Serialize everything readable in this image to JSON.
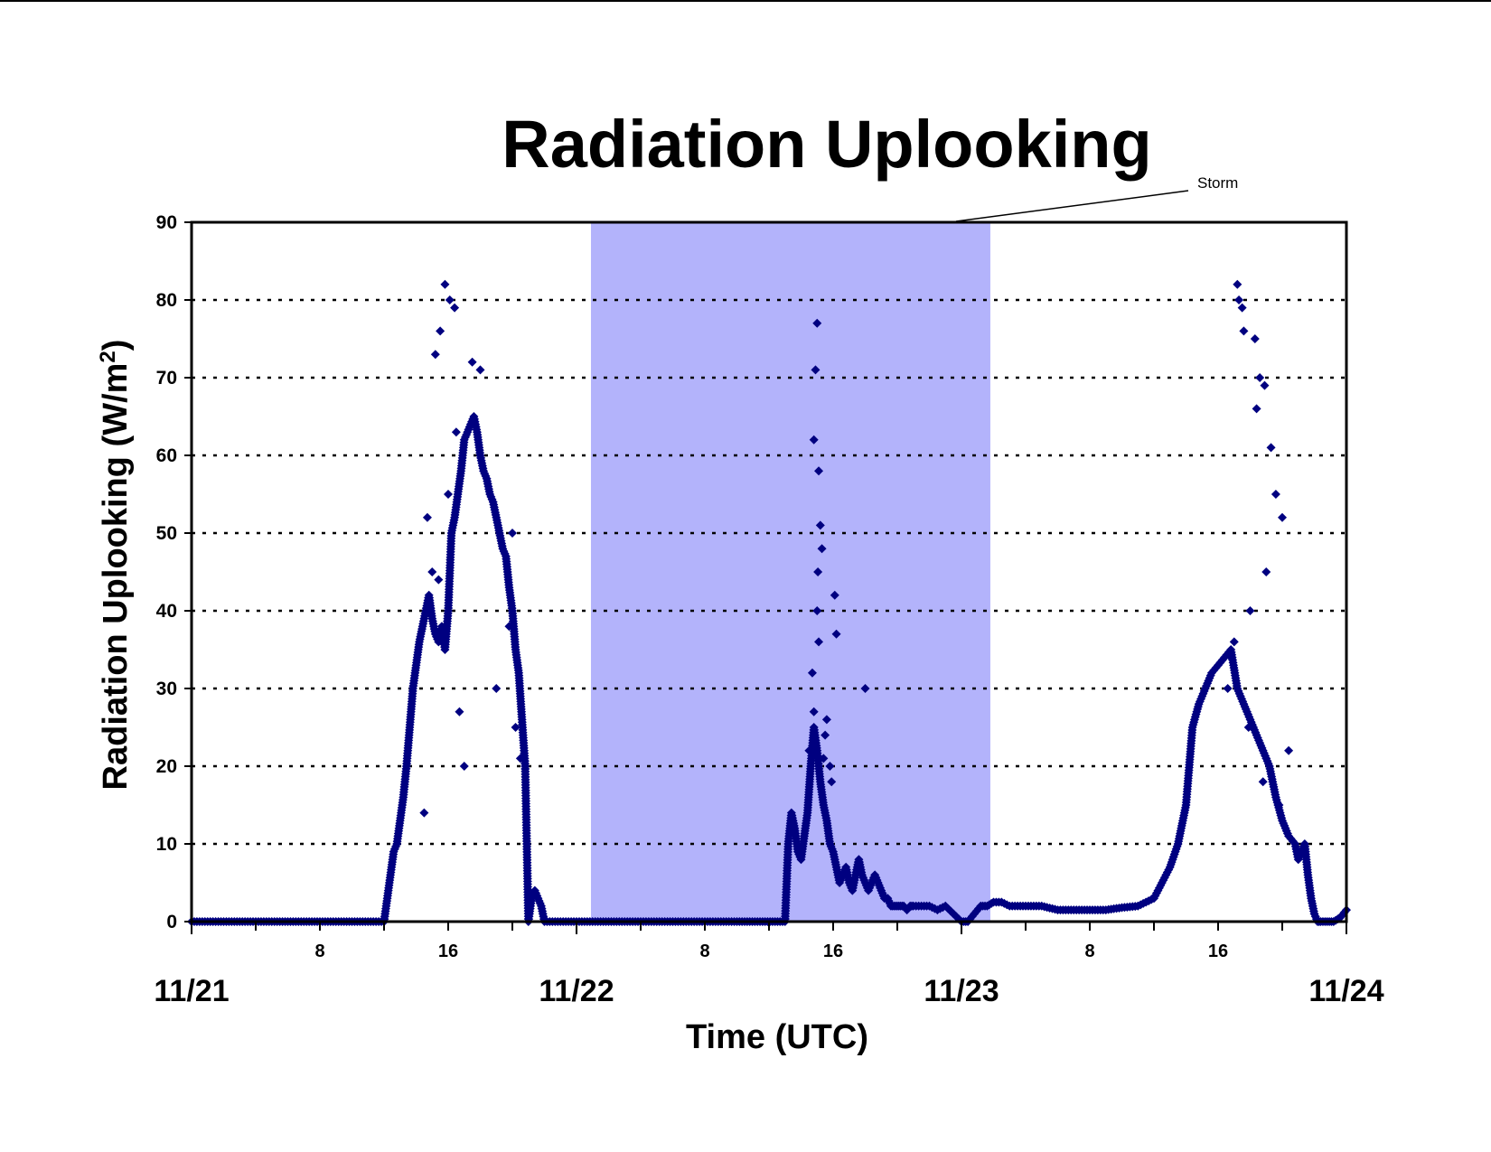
{
  "chart_data": {
    "type": "scatter",
    "title": "Radiation Uplooking",
    "xlabel": "Time (UTC)",
    "ylabel": {
      "text": "Radiation Uplooking (W/m",
      "superscript": "2",
      "close": ")"
    },
    "ylim": [
      0,
      90
    ],
    "yticks": [
      "0",
      "10",
      "20",
      "30",
      "40",
      "50",
      "60",
      "70",
      "80",
      "90"
    ],
    "xlim_hours": [
      0,
      72
    ],
    "x_hour_ticks": [
      {
        "hour": 8,
        "label": "8"
      },
      {
        "hour": 16,
        "label": "16"
      },
      {
        "hour": 32,
        "label": "8"
      },
      {
        "hour": 40,
        "label": "16"
      },
      {
        "hour": 56,
        "label": "8"
      },
      {
        "hour": 64,
        "label": "16"
      }
    ],
    "x_date_ticks": [
      {
        "hour": 0,
        "label": "11/21"
      },
      {
        "hour": 24,
        "label": "11/22"
      },
      {
        "hour": 48,
        "label": "11/23"
      },
      {
        "hour": 72,
        "label": "11/24"
      }
    ],
    "grid": "horizontal-dotted",
    "marker": "diamond",
    "marker_color": "#000080",
    "shaded_region": {
      "label": "Storm",
      "x_start": 24.9,
      "x_end": 49.8,
      "color": "#b3b3fb"
    },
    "series": [
      {
        "x": [
          0,
          2,
          4,
          6,
          8,
          10,
          12,
          12.2,
          12.4,
          12.6,
          12.8,
          13,
          13.2,
          13.4,
          13.6,
          13.8,
          14,
          14.2,
          14.4,
          14.6,
          14.8,
          15,
          15.2,
          15.4,
          15.6,
          15.8,
          16,
          16.2,
          16.4,
          16.6,
          16.8,
          17,
          17.2,
          17.4,
          17.6,
          17.8,
          18,
          18.2,
          18.4,
          18.6,
          18.8,
          19,
          19.2,
          19.4,
          19.6,
          19.8,
          20,
          20.2,
          20.4,
          20.6,
          20.8,
          21,
          21.2,
          21.4,
          21.6,
          21.8,
          22,
          23,
          24,
          26,
          28,
          30,
          32,
          34,
          35.6,
          37,
          37.2,
          37.4,
          37.6,
          37.8,
          38,
          38.2,
          38.4,
          38.6,
          38.8,
          39,
          39.2,
          39.4,
          39.6,
          39.8,
          40,
          40.2,
          40.4,
          40.6,
          40.8,
          41,
          41.2,
          41.4,
          41.6,
          41.8,
          42,
          42.2,
          42.4,
          42.6,
          42.8,
          43,
          43.2,
          43.4,
          43.6,
          43.8,
          44,
          44.2,
          44.4,
          44.6,
          44.8,
          45,
          45.5,
          46,
          46.5,
          47,
          47.5,
          48,
          48.4,
          48.8,
          49.2,
          49.6,
          50,
          50.5,
          51,
          52,
          53,
          54,
          55,
          56,
          57,
          58,
          59,
          60,
          60.5,
          61,
          61.5,
          62,
          62.4,
          62.8,
          63.2,
          63.6,
          64,
          64.4,
          64.8,
          65.2,
          65.6,
          66,
          66.4,
          66.8,
          67.2,
          67.6,
          68,
          68.4,
          68.8,
          69,
          69.2,
          69.4,
          69.6,
          69.8,
          70,
          70.2,
          70.4,
          70.8,
          71.2,
          71.6,
          72,
          15.8,
          16.1,
          16.4,
          15.5,
          17.5,
          18,
          20.2,
          20.5,
          15.2,
          15.0,
          16.7,
          17.0,
          19.8,
          19.0,
          14.7,
          15.4,
          16.0,
          20.0,
          16.5,
          14.5,
          39.0,
          38.9,
          38.8,
          39.1,
          39.2,
          39.3,
          39.05,
          39.0,
          39.1,
          38.7,
          38.8,
          39.6,
          39.5,
          38.5,
          39.4,
          39.8,
          39.9,
          40.1,
          40.2,
          42.0,
          65.2,
          65.3,
          65.5,
          65.6,
          66.3,
          66.6,
          66.9,
          66.4,
          67.3,
          67.6,
          68.0,
          67.0,
          66.0,
          65.0,
          64.8,
          64.6,
          67.8,
          65.9,
          68.4,
          66.8
        ],
        "y": [
          0,
          0,
          0,
          0,
          0,
          0,
          0,
          3,
          6,
          9,
          10,
          13,
          16,
          20,
          25,
          30,
          33,
          36,
          38,
          40,
          42,
          39,
          37,
          36,
          38,
          35,
          40,
          50,
          52,
          55,
          58,
          62,
          63,
          64,
          65,
          63,
          60,
          58,
          57,
          55,
          54,
          52,
          50,
          48,
          47,
          43,
          40,
          35,
          32,
          26,
          20,
          0,
          3,
          4,
          3,
          2,
          0,
          0,
          0,
          0,
          0,
          0,
          0,
          0,
          0,
          0,
          10,
          14,
          12,
          9,
          8,
          11,
          14,
          20,
          25,
          22,
          18,
          15,
          13,
          10,
          9,
          7,
          5,
          6,
          7,
          5,
          4,
          6,
          8,
          6,
          5,
          4,
          5,
          6,
          5,
          4,
          3,
          3,
          2,
          2,
          2,
          2,
          2,
          1.5,
          2,
          2,
          2,
          2,
          1.5,
          2,
          1,
          0,
          0,
          1,
          2,
          2,
          2.5,
          2.5,
          2,
          2,
          2,
          1.5,
          1.5,
          1.5,
          1.5,
          1.8,
          2,
          3,
          5,
          7,
          10,
          15,
          25,
          28,
          30,
          32,
          33,
          34,
          35,
          30,
          28,
          26,
          24,
          22,
          20,
          16,
          13,
          11,
          10,
          8,
          9,
          10,
          6,
          3,
          1,
          0,
          0,
          0,
          0,
          0.5,
          1.5,
          82,
          80,
          79,
          76,
          72,
          71,
          25,
          21,
          73,
          45,
          27,
          20,
          38,
          30,
          52,
          44,
          55,
          50,
          63,
          14,
          77,
          71,
          62,
          58,
          51,
          48,
          45,
          40,
          36,
          32,
          27,
          26,
          24,
          22,
          21,
          20,
          18,
          42,
          37,
          30,
          82,
          80,
          79,
          76,
          75,
          70,
          69,
          66,
          61,
          55,
          52,
          45,
          40,
          36,
          34,
          30,
          15,
          25,
          22,
          18
        ]
      }
    ]
  }
}
